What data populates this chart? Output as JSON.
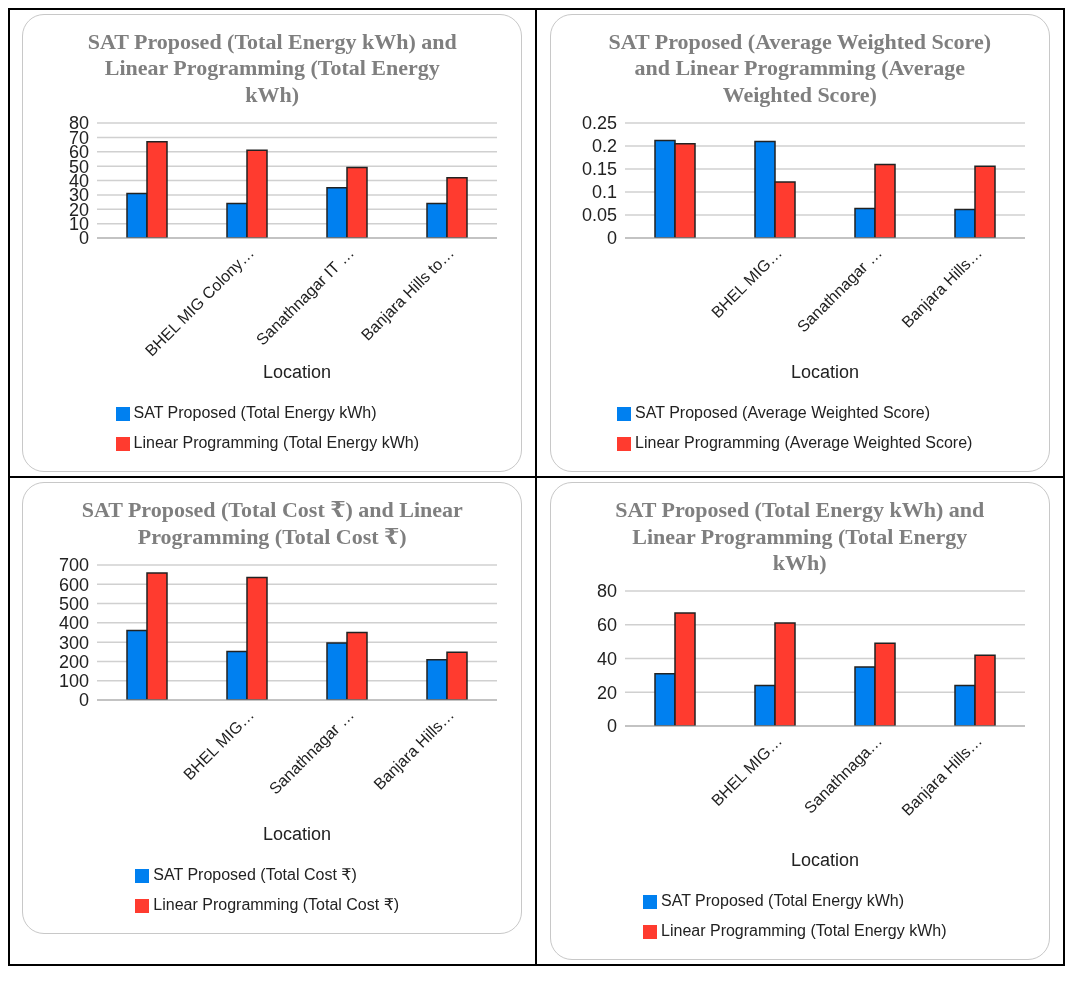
{
  "chart_data": [
    {
      "type": "bar",
      "title": "SAT Proposed (Total Energy kWh) and Linear Programming (Total Energy kWh)",
      "xlabel": "Location",
      "categories": [
        null,
        "BHEL MIG Colony…",
        "Sanathnagar IT …",
        "Banjara Hills to…"
      ],
      "series": [
        {
          "name": "SAT Proposed (Total Energy kWh)",
          "color": "#0080f0",
          "values": [
            31,
            24,
            35,
            24
          ]
        },
        {
          "name": "Linear Programming (Total Energy kWh)",
          "color": "#ff3b2f",
          "values": [
            67,
            61,
            49,
            42
          ]
        }
      ],
      "ylim": [
        0,
        80
      ],
      "yticks": [
        0,
        10,
        20,
        30,
        40,
        50,
        60,
        70,
        80
      ],
      "grid": "y",
      "legend": "bottom"
    },
    {
      "type": "bar",
      "title": "SAT Proposed (Average Weighted Score) and Linear Programming (Average Weighted Score)",
      "xlabel": "Location",
      "categories": [
        null,
        "BHEL MIG…",
        "Sanathnagar …",
        "Banjara Hills…"
      ],
      "series": [
        {
          "name": "SAT Proposed (Average Weighted Score)",
          "color": "#0080f0",
          "values": [
            0.212,
            0.21,
            0.064,
            0.062
          ]
        },
        {
          "name": "Linear Programming (Average Weighted Score)",
          "color": "#ff3b2f",
          "values": [
            0.205,
            0.122,
            0.16,
            0.156
          ]
        }
      ],
      "ylim": [
        0,
        0.25
      ],
      "yticks": [
        0,
        0.05,
        0.1,
        0.15,
        0.2,
        0.25
      ],
      "grid": "y",
      "legend": "bottom"
    },
    {
      "type": "bar",
      "title": "SAT Proposed (Total Cost ₹) and Linear Programming (Total Cost ₹)",
      "xlabel": "Location",
      "categories": [
        null,
        "BHEL MIG…",
        "Sanathnagar …",
        "Banjara Hills…"
      ],
      "series": [
        {
          "name": "SAT Proposed (Total Cost ₹)",
          "color": "#0080f0",
          "values": [
            360,
            251,
            295,
            209
          ]
        },
        {
          "name": "Linear Programming (Total Cost ₹)",
          "color": "#ff3b2f",
          "values": [
            659,
            635,
            350,
            247
          ]
        }
      ],
      "ylim": [
        0,
        700
      ],
      "yticks": [
        0,
        100,
        200,
        300,
        400,
        500,
        600,
        700
      ],
      "grid": "y",
      "legend": "bottom"
    },
    {
      "type": "bar",
      "title": "SAT Proposed (Total Energy kWh) and Linear Programming (Total Energy kWh)",
      "xlabel": "Location",
      "categories": [
        null,
        "BHEL MIG…",
        "Sanathnaga…",
        "Banjara Hills…"
      ],
      "series": [
        {
          "name": "SAT Proposed (Total Energy kWh)",
          "color": "#0080f0",
          "values": [
            31,
            24,
            35,
            24
          ]
        },
        {
          "name": "Linear Programming (Total Energy kWh)",
          "color": "#ff3b2f",
          "values": [
            67,
            61,
            49,
            42
          ]
        }
      ],
      "ylim": [
        0,
        80
      ],
      "yticks": [
        0,
        20,
        40,
        60,
        80
      ],
      "grid": "y",
      "legend": "bottom"
    }
  ]
}
